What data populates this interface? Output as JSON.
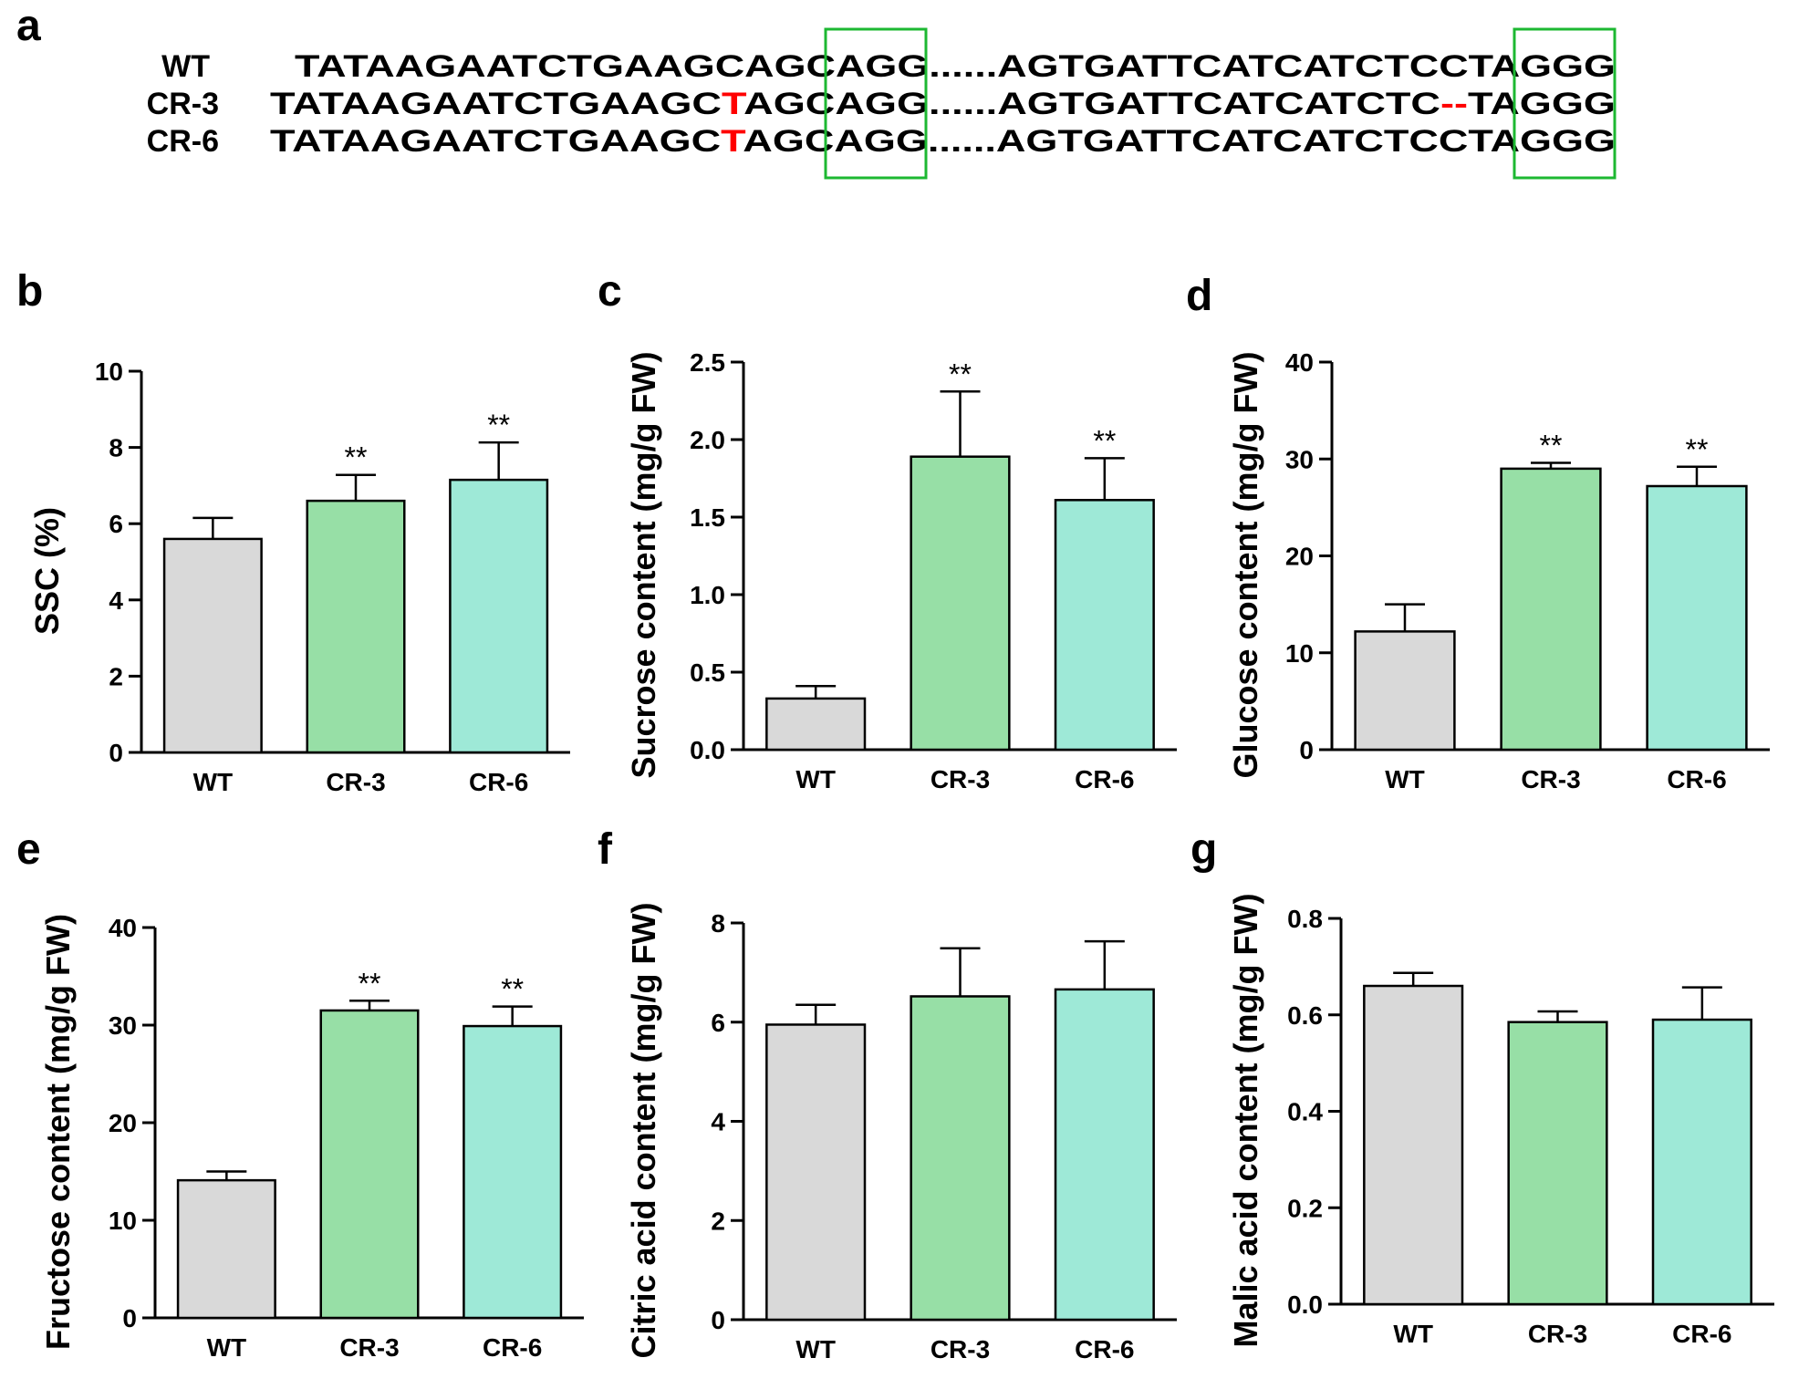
{
  "panel_a": {
    "label": "a",
    "rows": [
      {
        "name": "WT",
        "parts": [
          {
            "text": "TATAAGAATCTGAAGCAGCAGG......AGTGATTCATCATCTCCTAGGG",
            "style": "normal"
          }
        ]
      },
      {
        "name": "CR-3",
        "parts": [
          {
            "text": "TATAAGAATCTGAAGC",
            "style": "normal"
          },
          {
            "text": "T",
            "style": "mutation"
          },
          {
            "text": "AGCAGG......AGTGATTCATCATCTC",
            "style": "normal"
          },
          {
            "text": "--",
            "style": "mutation"
          },
          {
            "text": "TAGGG",
            "style": "normal"
          }
        ]
      },
      {
        "name": "CR-6",
        "parts": [
          {
            "text": "TATAAGAATCTGAAGC",
            "style": "normal"
          },
          {
            "text": "T",
            "style": "mutation"
          },
          {
            "text": "AGCAGG......AGTGATTCATCATCTCCTAGGG",
            "style": "normal"
          }
        ]
      }
    ]
  },
  "colors": {
    "WT": "#d9d9d9",
    "CR-3": "#97dfa6",
    "CR-6": "#9ee9d7",
    "mutation": "#ff0000",
    "pam_box": "#1db832",
    "axis": "#000000"
  },
  "chart_data": [
    {
      "panel": "b",
      "type": "bar",
      "categories": [
        "WT",
        "CR-3",
        "CR-6"
      ],
      "values": [
        5.6,
        6.6,
        7.15
      ],
      "errors": [
        0.55,
        0.68,
        0.98
      ],
      "significance": [
        "",
        "**",
        "**"
      ],
      "ylabel": "SSC (%)",
      "ylim": [
        0,
        10
      ],
      "yticks": [
        "0",
        "2",
        "4",
        "6",
        "8",
        "10"
      ]
    },
    {
      "panel": "c",
      "type": "bar",
      "categories": [
        "WT",
        "CR-3",
        "CR-6"
      ],
      "values": [
        0.33,
        1.89,
        1.61
      ],
      "errors": [
        0.08,
        0.42,
        0.27
      ],
      "significance": [
        "",
        "**",
        "**"
      ],
      "ylabel": "Sucrose content (mg/g FW)",
      "ylim": [
        0,
        2.5
      ],
      "yticks": [
        "0.0",
        "0.5",
        "1.0",
        "1.5",
        "2.0",
        "2.5"
      ]
    },
    {
      "panel": "d",
      "type": "bar",
      "categories": [
        "WT",
        "CR-3",
        "CR-6"
      ],
      "values": [
        12.2,
        29.0,
        27.2
      ],
      "errors": [
        2.8,
        0.6,
        2.0
      ],
      "significance": [
        "",
        "**",
        "**"
      ],
      "ylabel": "Glucose content (mg/g FW)",
      "ylim": [
        0,
        40
      ],
      "yticks": [
        "0",
        "10",
        "20",
        "30",
        "40"
      ]
    },
    {
      "panel": "e",
      "type": "bar",
      "categories": [
        "WT",
        "CR-3",
        "CR-6"
      ],
      "values": [
        14.1,
        31.5,
        29.9
      ],
      "errors": [
        0.9,
        1.0,
        2.0
      ],
      "significance": [
        "",
        "**",
        "**"
      ],
      "ylabel": "Fructose content (mg/g FW)",
      "ylim": [
        0,
        40
      ],
      "yticks": [
        "0",
        "10",
        "20",
        "30",
        "40"
      ]
    },
    {
      "panel": "f",
      "type": "bar",
      "categories": [
        "WT",
        "CR-3",
        "CR-6"
      ],
      "values": [
        5.95,
        6.52,
        6.66
      ],
      "errors": [
        0.4,
        0.97,
        0.97
      ],
      "significance": [
        "",
        "",
        ""
      ],
      "ylabel": "Citric acid content (mg/g FW)",
      "ylim": [
        0,
        8
      ],
      "yticks": [
        "0",
        "2",
        "4",
        "6",
        "8"
      ]
    },
    {
      "panel": "g",
      "type": "bar",
      "categories": [
        "WT",
        "CR-3",
        "CR-6"
      ],
      "values": [
        0.66,
        0.585,
        0.59
      ],
      "errors": [
        0.027,
        0.022,
        0.067
      ],
      "significance": [
        "",
        "",
        ""
      ],
      "ylabel": "Malic acid content (mg/g FW)",
      "ylim": [
        0,
        0.8
      ],
      "yticks": [
        "0.0",
        "0.2",
        "0.4",
        "0.6",
        "0.8"
      ]
    }
  ]
}
